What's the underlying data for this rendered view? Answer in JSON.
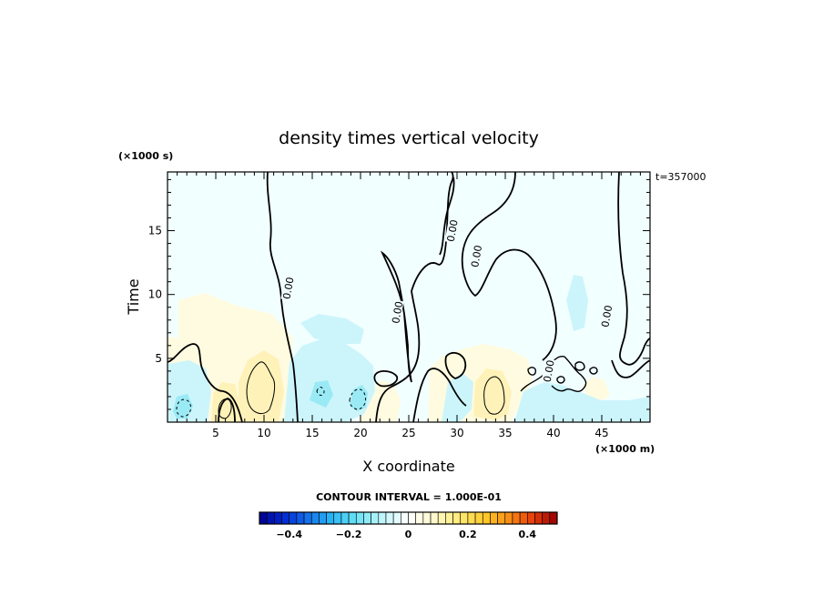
{
  "chart_data": {
    "type": "heatmap",
    "title": "density times vertical velocity",
    "xlabel": "X coordinate",
    "ylabel": "Time",
    "x_unit": "(×1000 m)",
    "y_unit": "(×1000 s)",
    "time_stamp": "t=357000",
    "xlim": [
      0,
      50
    ],
    "ylim": [
      0,
      19.6
    ],
    "x_ticks": [
      5,
      10,
      15,
      20,
      25,
      30,
      35,
      40,
      45
    ],
    "y_ticks": [
      5,
      10,
      15
    ],
    "contour_interval_text": "CONTOUR INTERVAL = 1.000E-01",
    "colorbar": {
      "range": [
        -0.5,
        0.5
      ],
      "tick_values": [
        -0.4,
        -0.2,
        0,
        0.2,
        0.4
      ],
      "tick_labels": [
        "−0.4",
        "−0.2",
        "0",
        "0.2",
        "0.4"
      ]
    },
    "zero_contour_labels": [
      {
        "x": 12.5,
        "y": 10.5,
        "text": "0.00"
      },
      {
        "x": 23.8,
        "y": 8.6,
        "text": "0.00"
      },
      {
        "x": 29.5,
        "y": 15.0,
        "text": "0.00"
      },
      {
        "x": 32.0,
        "y": 13.0,
        "text": "0.00"
      },
      {
        "x": 45.5,
        "y": 8.3,
        "text": "0.00"
      },
      {
        "x": 39.5,
        "y": 4.0,
        "text": "0.00"
      }
    ],
    "features": [
      {
        "x": 9.5,
        "y": 2.7,
        "value": 0.2,
        "sign": "positive"
      },
      {
        "x": 33.8,
        "y": 2.3,
        "value": 0.2,
        "sign": "positive"
      },
      {
        "x": 6.5,
        "y": 1.5,
        "value": 0.1,
        "sign": "positive"
      },
      {
        "x": 1.7,
        "y": 1.2,
        "value": -0.1,
        "sign": "negative"
      },
      {
        "x": 19.8,
        "y": 2.0,
        "value": -0.1,
        "sign": "negative"
      }
    ]
  }
}
